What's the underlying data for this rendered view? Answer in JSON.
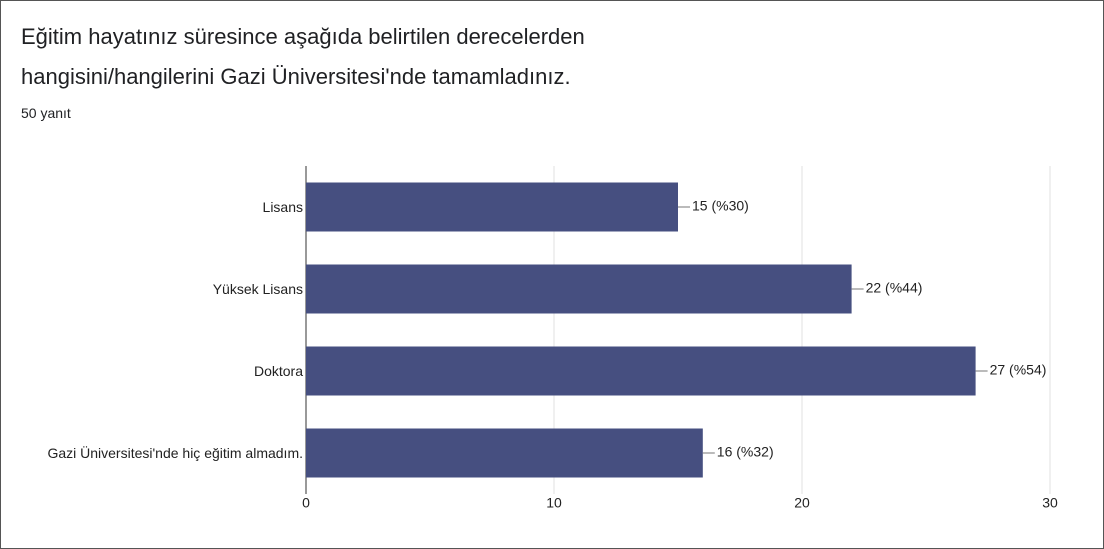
{
  "chart_data": {
    "type": "barh",
    "title": "Eğitim hayatınız süresince aşağıda belirtilen derecelerden hangisini/hangilerini Gazi Üniversitesi'nde tamamladınız.",
    "subtitle": "50 yanıt",
    "categories": [
      "Lisans",
      "Yüksek Lisans",
      "Doktora",
      "Gazi Üniversitesi'nde hiç eğitim almadım."
    ],
    "values": [
      15,
      22,
      27,
      16
    ],
    "value_labels": [
      "15 (%30)",
      "22 (%44)",
      "27 (%54)",
      "16 (%32)"
    ],
    "color": "#464f80",
    "xlim": [
      0,
      30
    ],
    "xticks": [
      0,
      10,
      20,
      30
    ],
    "grid": true
  }
}
